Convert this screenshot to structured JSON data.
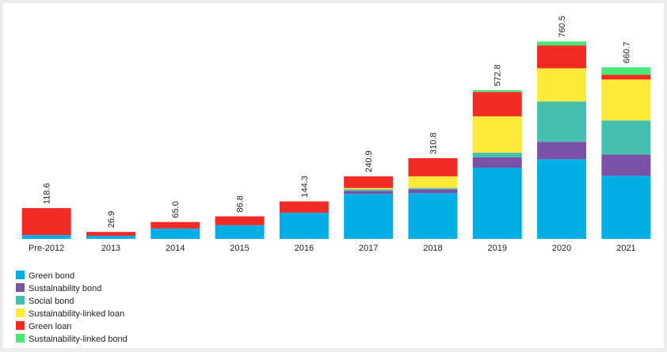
{
  "chart_data": {
    "type": "stacked-bar",
    "categories": [
      "Pre-2012",
      "2013",
      "2014",
      "2015",
      "2016",
      "2017",
      "2018",
      "2019",
      "2020",
      "2021"
    ],
    "series": [
      {
        "name": "Green bond",
        "color": "#00aee6",
        "values": [
          15,
          12,
          40,
          53,
          100,
          173,
          176,
          274,
          307,
          243
        ]
      },
      {
        "name": "Sustainability bond",
        "color": "#7a52a5",
        "values": [
          0,
          0,
          0,
          0,
          2,
          12,
          15,
          40,
          67,
          82
        ]
      },
      {
        "name": "Social bond",
        "color": "#45bfb0",
        "values": [
          0,
          0,
          0,
          0,
          0,
          6,
          5,
          18,
          155,
          131
        ]
      },
      {
        "name": "Sustainability-linked loan",
        "color": "#fde93a",
        "values": [
          0,
          0,
          0,
          0,
          0,
          5,
          45,
          140,
          128,
          158
        ]
      },
      {
        "name": "Green loan",
        "color": "#ef2b24",
        "values": [
          103.6,
          14.9,
          25,
          33.8,
          42.3,
          44.9,
          69.8,
          94,
          88,
          18
        ]
      },
      {
        "name": "Sustainability-linked bond",
        "color": "#4be57a",
        "values": [
          0,
          0,
          0,
          0,
          0,
          0,
          0,
          6.8,
          15.5,
          28.7
        ]
      }
    ],
    "totals": [
      118.6,
      26.9,
      65.0,
      86.8,
      144.3,
      240.9,
      310.8,
      572.8,
      760.5,
      660.7
    ],
    "value_labels": [
      "118.6",
      "26.9",
      "65.0",
      "86.8",
      "144.3",
      "240.9",
      "310.8",
      "572.8",
      "760.5",
      "660.7"
    ],
    "ylim": [
      0,
      850
    ],
    "legend": "bottom-left"
  }
}
